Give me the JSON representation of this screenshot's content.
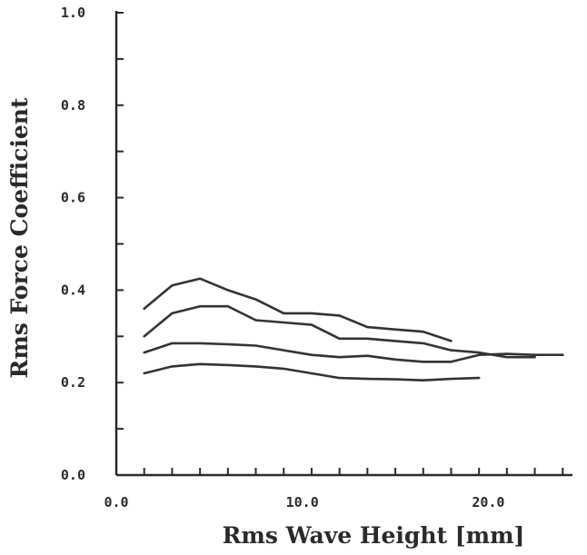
{
  "chart_data": {
    "type": "line",
    "title": "",
    "xlabel": "Rms Wave Height [mm]",
    "ylabel": "Rms Force Coefficient",
    "xlim": [
      0,
      25
    ],
    "ylim": [
      0,
      1.0
    ],
    "x_ticks": [
      0,
      10,
      20
    ],
    "x_tick_labels": [
      "0.0",
      "10.0",
      "20.0"
    ],
    "y_ticks": [
      0,
      0.2,
      0.4,
      0.6,
      0.8,
      1.0
    ],
    "y_tick_labels": [
      "0.0",
      "0.2",
      "0.4",
      "0.6",
      "0.8",
      "1.0"
    ],
    "x_minor_step": 1.5,
    "y_minor_step": 0.1,
    "grid": false,
    "series": [
      {
        "x": [
          1.5,
          3.0,
          4.5,
          6.0,
          7.5,
          9.0,
          10.5,
          12.0,
          13.5,
          15.0,
          16.5,
          18.0
        ],
        "values": [
          0.36,
          0.41,
          0.425,
          0.4,
          0.38,
          0.35,
          0.35,
          0.345,
          0.32,
          0.315,
          0.31,
          0.29
        ]
      },
      {
        "x": [
          1.5,
          3.0,
          4.5,
          6.0,
          7.5,
          9.0,
          10.5,
          12.0,
          13.5,
          15.0,
          16.5,
          18.0,
          19.5,
          21.0,
          22.5
        ],
        "values": [
          0.3,
          0.35,
          0.365,
          0.365,
          0.335,
          0.33,
          0.325,
          0.295,
          0.295,
          0.29,
          0.285,
          0.27,
          0.265,
          0.255,
          0.255
        ]
      },
      {
        "x": [
          1.5,
          3.0,
          4.5,
          6.0,
          7.5,
          9.0,
          10.5,
          12.0,
          13.5,
          15.0,
          16.5,
          18.0,
          19.5,
          21.0,
          22.5,
          24.0
        ],
        "values": [
          0.265,
          0.285,
          0.285,
          0.283,
          0.28,
          0.27,
          0.26,
          0.255,
          0.258,
          0.25,
          0.245,
          0.245,
          0.26,
          0.262,
          0.26,
          0.26
        ]
      },
      {
        "x": [
          1.5,
          3.0,
          4.5,
          6.0,
          7.5,
          9.0,
          10.5,
          12.0,
          13.5,
          15.0,
          16.5,
          18.0,
          19.5
        ],
        "values": [
          0.22,
          0.235,
          0.24,
          0.238,
          0.235,
          0.23,
          0.22,
          0.21,
          0.208,
          0.207,
          0.205,
          0.208,
          0.21
        ]
      }
    ]
  }
}
